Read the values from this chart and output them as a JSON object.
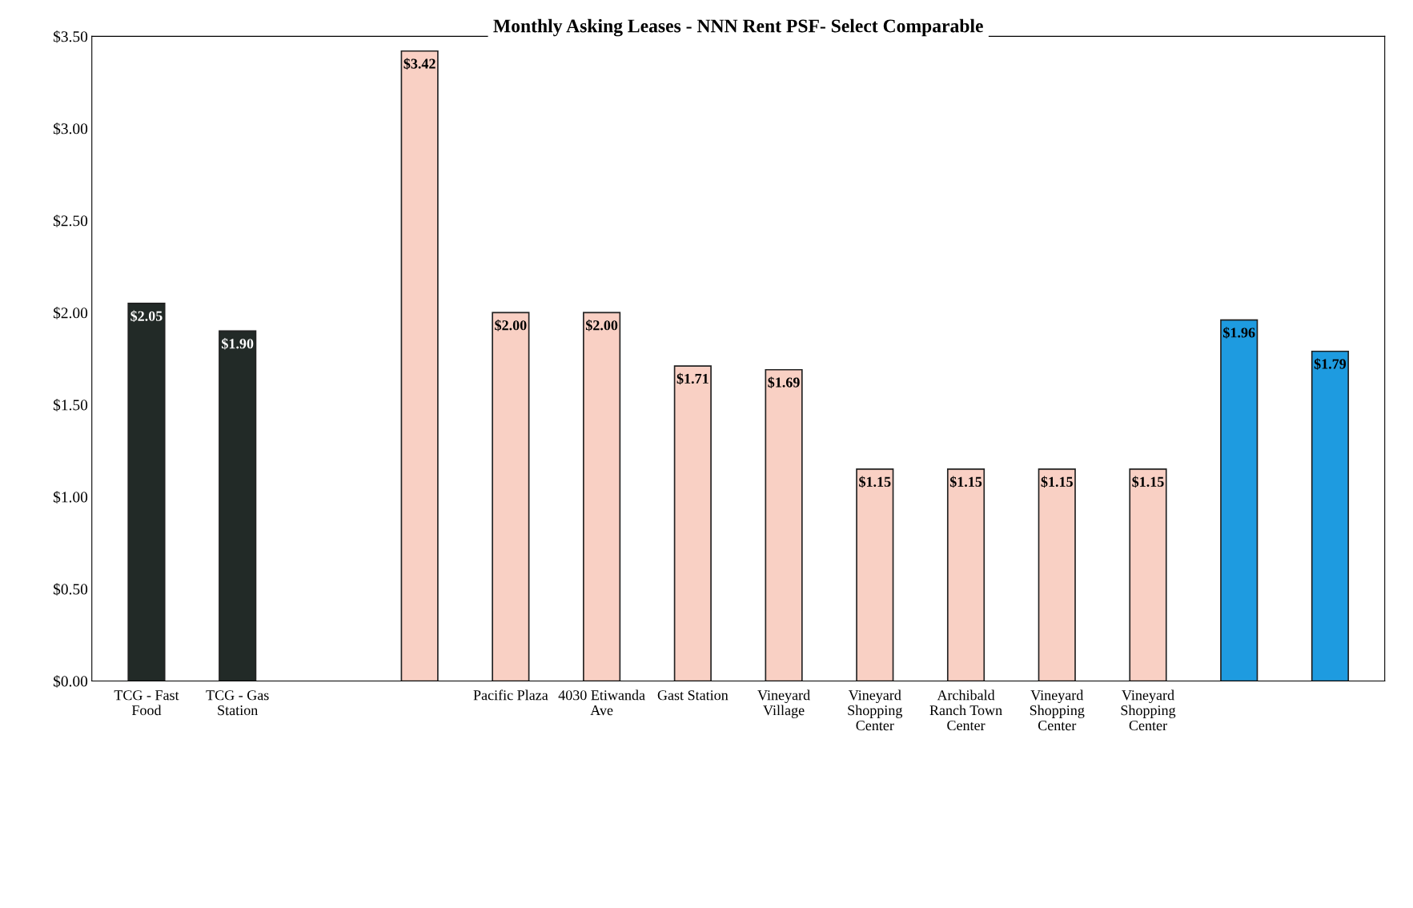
{
  "chart_data": {
    "type": "bar",
    "title": "Monthly Asking Leases - NNN Rent PSF- Select Comparable",
    "categories": [
      "TCG - Fast Food",
      "TCG - Gas Station",
      null,
      null,
      "Pacific Plaza",
      "4030 Etiwanda Ave",
      "Gast Station",
      "Vineyard Village",
      "Vineyard Shopping Center",
      "Archibald Ranch Town Center",
      "Vineyard Shopping Center",
      "Vineyard Shopping Center",
      null,
      null
    ],
    "values": [
      2.05,
      1.9,
      null,
      3.42,
      2.0,
      2.0,
      1.71,
      1.69,
      1.15,
      1.15,
      1.15,
      1.15,
      1.96,
      1.79
    ],
    "value_labels": [
      "$2.05",
      "$1.90",
      null,
      "$3.42",
      "$2.00",
      "$2.00",
      "$1.71",
      "$1.69",
      "$1.15",
      "$1.15",
      "$1.15",
      "$1.15",
      "$1.96",
      "$1.79"
    ],
    "colors": [
      "#222a27",
      "#222a27",
      "#222a27",
      "#f9d0c4",
      "#f9d0c4",
      "#f9d0c4",
      "#f9d0c4",
      "#f9d0c4",
      "#f9d0c4",
      "#f9d0c4",
      "#f9d0c4",
      "#f9d0c4",
      "#1e9be0",
      "#1e9be0"
    ],
    "ylim": [
      0,
      3.5
    ],
    "yticks": [
      {
        "value": 0,
        "label": "$0.00"
      },
      {
        "value": 0.5,
        "label": "$0.50"
      },
      {
        "value": 1,
        "label": "$1.00"
      },
      {
        "value": 1.5,
        "label": "$1.50"
      },
      {
        "value": 2,
        "label": "$2.00"
      },
      {
        "value": 2.5,
        "label": "$2.50"
      },
      {
        "value": 3,
        "label": "$3.00"
      },
      {
        "value": 3.5,
        "label": "$3.50"
      }
    ]
  }
}
